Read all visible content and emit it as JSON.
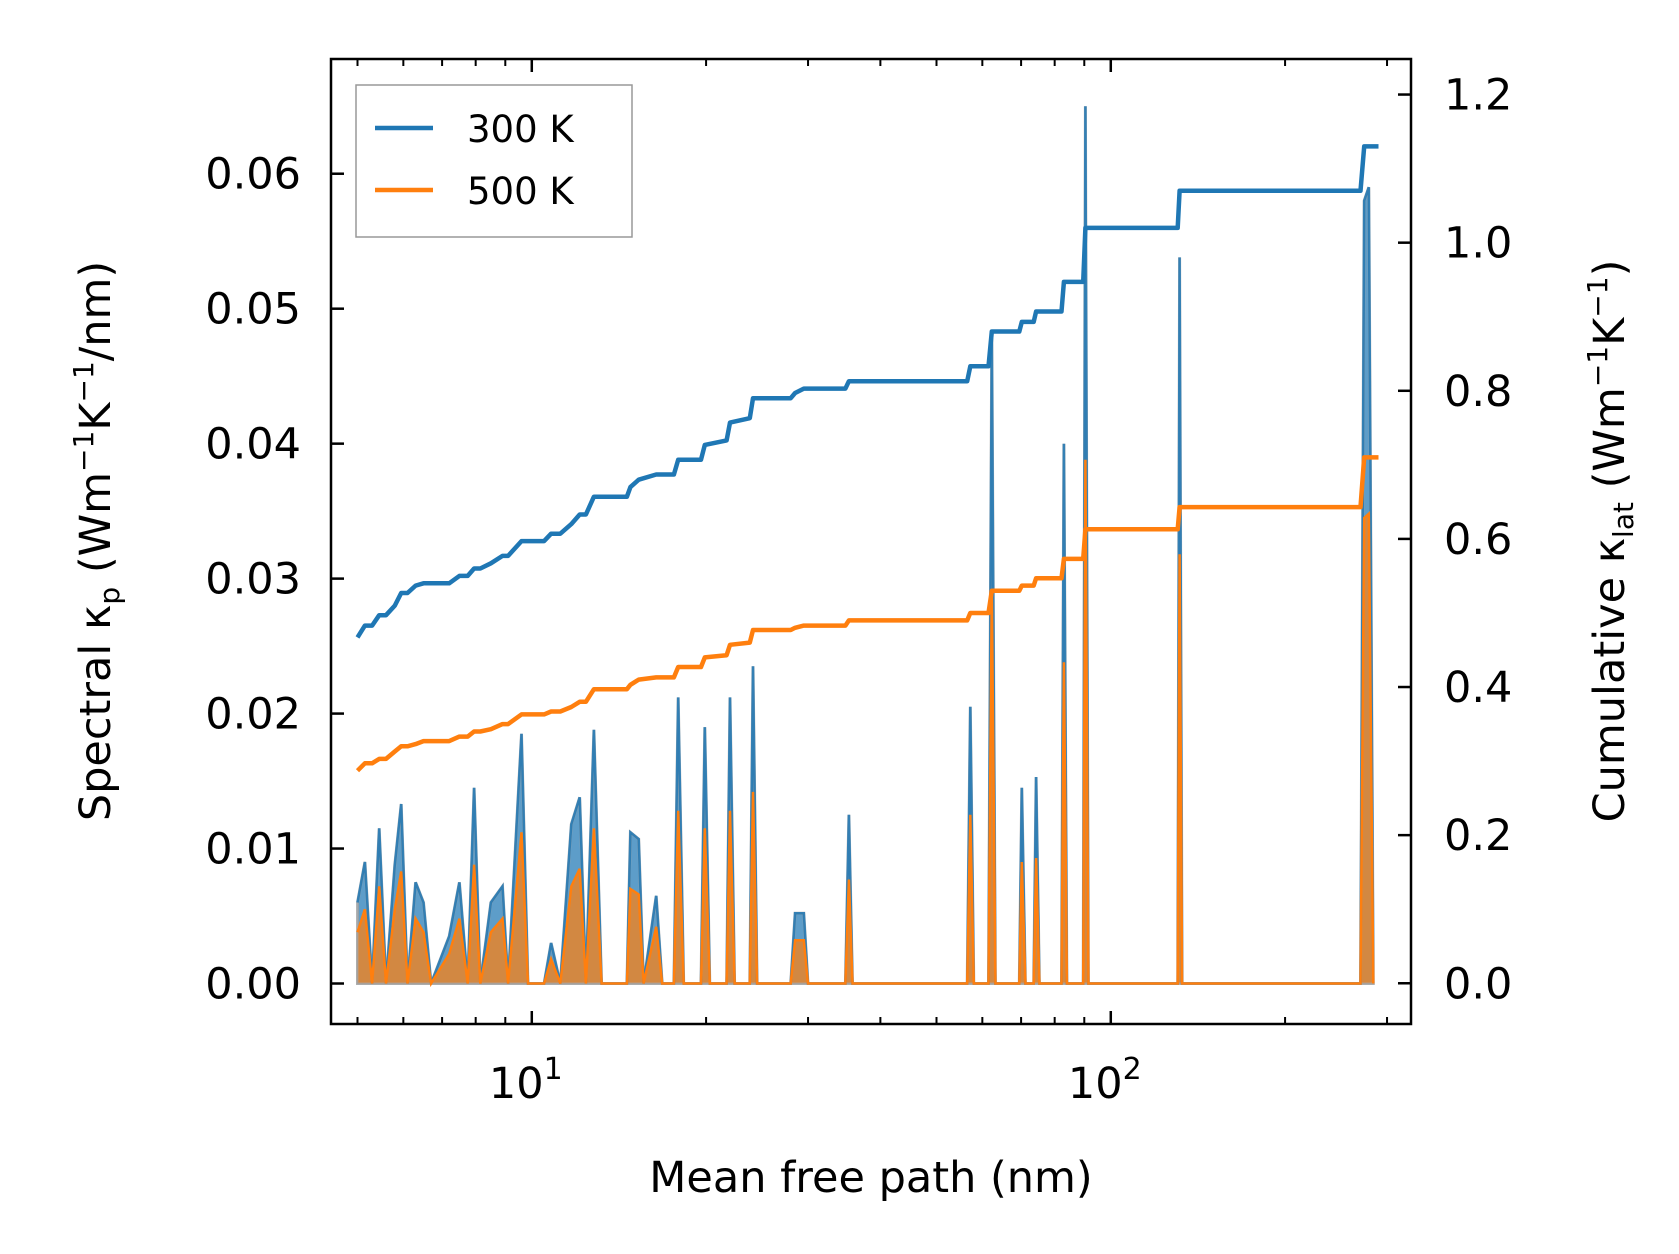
{
  "chart_data": {
    "type": "line",
    "title": "",
    "xlabel": "Mean free path (nm)",
    "ylabel_left": {
      "main": "Spectral κ",
      "sub": "p",
      "units_pre": " (Wm",
      "sup1": "−1",
      "k": "K",
      "sup2": "−1",
      "units_post": "/nm)"
    },
    "ylabel_right": {
      "main": "Cumulative κ",
      "sub": "lat",
      "units_pre": " (Wm",
      "sup1": "−1",
      "k": "K",
      "sup2": "−1",
      "units_post": ")"
    },
    "xscale": "log",
    "xlim": [
      4.5,
      330
    ],
    "ylim_left": [
      -0.003,
      0.0685
    ],
    "ylim_right": [
      -0.055,
      1.248
    ],
    "xticks": [
      {
        "value": 10,
        "base": "10",
        "exp": "1"
      },
      {
        "value": 100,
        "base": "10",
        "exp": "2"
      }
    ],
    "yticks_left": [
      {
        "value": 0.0,
        "label": "0.00"
      },
      {
        "value": 0.01,
        "label": "0.01"
      },
      {
        "value": 0.02,
        "label": "0.02"
      },
      {
        "value": 0.03,
        "label": "0.03"
      },
      {
        "value": 0.04,
        "label": "0.04"
      },
      {
        "value": 0.05,
        "label": "0.05"
      },
      {
        "value": 0.06,
        "label": "0.06"
      }
    ],
    "yticks_right": [
      {
        "value": 0.0,
        "label": "0.0"
      },
      {
        "value": 0.2,
        "label": "0.2"
      },
      {
        "value": 0.4,
        "label": "0.4"
      },
      {
        "value": 0.6,
        "label": "0.6"
      },
      {
        "value": 0.8,
        "label": "0.8"
      },
      {
        "value": 1.0,
        "label": "1.0"
      },
      {
        "value": 1.2,
        "label": "1.2"
      }
    ],
    "legend": {
      "location": "upper-left",
      "entries": [
        "300 K",
        "500 K"
      ]
    },
    "colors": {
      "s300": "#1f77b4",
      "s500": "#ff7f0e",
      "fill300": "#1f77b4",
      "fill500": "#ff7f0e",
      "fillEdge": "#a0a0a0"
    },
    "spectral": {
      "s300": [
        [
          5.0,
          0.006
        ],
        [
          5.15,
          0.009
        ],
        [
          5.3,
          0.0
        ],
        [
          5.45,
          0.0115
        ],
        [
          5.6,
          0.0
        ],
        [
          5.8,
          0.0088
        ],
        [
          5.95,
          0.0133
        ],
        [
          6.1,
          0.0
        ],
        [
          6.3,
          0.0075
        ],
        [
          6.5,
          0.006
        ],
        [
          6.7,
          0.0
        ],
        [
          7.2,
          0.0035
        ],
        [
          7.5,
          0.0075
        ],
        [
          7.75,
          0.0
        ],
        [
          7.95,
          0.0145
        ],
        [
          8.15,
          0.0
        ],
        [
          8.5,
          0.006
        ],
        [
          8.9,
          0.0072
        ],
        [
          9.1,
          0.0
        ],
        [
          9.6,
          0.0185
        ],
        [
          9.85,
          0.0
        ],
        [
          10.5,
          0.0
        ],
        [
          10.8,
          0.003
        ],
        [
          11.2,
          0.0
        ],
        [
          11.7,
          0.0118
        ],
        [
          12.1,
          0.0138
        ],
        [
          12.4,
          0.0
        ],
        [
          12.8,
          0.0188
        ],
        [
          13.2,
          0.0
        ],
        [
          14.6,
          0.0
        ],
        [
          14.8,
          0.0112
        ],
        [
          15.3,
          0.0107
        ],
        [
          15.6,
          0.0
        ],
        [
          16.4,
          0.0065
        ],
        [
          16.8,
          0.0
        ],
        [
          17.6,
          0.0
        ],
        [
          17.9,
          0.0212
        ],
        [
          18.3,
          0.0
        ],
        [
          19.6,
          0.0
        ],
        [
          19.9,
          0.019
        ],
        [
          20.3,
          0.0
        ],
        [
          21.7,
          0.0
        ],
        [
          22.0,
          0.0212
        ],
        [
          22.4,
          0.0
        ],
        [
          23.8,
          0.0
        ],
        [
          24.1,
          0.0235
        ],
        [
          24.5,
          0.0
        ],
        [
          28.0,
          0.0
        ],
        [
          28.5,
          0.0052
        ],
        [
          29.5,
          0.0052
        ],
        [
          30.0,
          0.0
        ],
        [
          34.8,
          0.0
        ],
        [
          35.3,
          0.0125
        ],
        [
          35.8,
          0.0
        ],
        [
          56.5,
          0.0
        ],
        [
          57.2,
          0.0205
        ],
        [
          58.0,
          0.0
        ],
        [
          61.5,
          0.0
        ],
        [
          62.3,
          0.048
        ],
        [
          63.2,
          0.0
        ],
        [
          69.5,
          0.0
        ],
        [
          70.2,
          0.0145
        ],
        [
          71.2,
          0.0
        ],
        [
          73.6,
          0.0
        ],
        [
          74.3,
          0.0153
        ],
        [
          75.3,
          0.0
        ],
        [
          82.2,
          0.0
        ],
        [
          83.0,
          0.04
        ],
        [
          84.0,
          0.0
        ],
        [
          89.6,
          0.0
        ],
        [
          90.4,
          0.065
        ],
        [
          91.5,
          0.0
        ],
        [
          130.5,
          0.0
        ],
        [
          131.5,
          0.0538
        ],
        [
          132.8,
          0.0
        ],
        [
          270.0,
          0.0
        ],
        [
          274.0,
          0.058
        ],
        [
          279.0,
          0.059
        ],
        [
          284.0,
          0.0
        ]
      ],
      "s500": [
        [
          5.0,
          0.0038
        ],
        [
          5.15,
          0.0055
        ],
        [
          5.3,
          0.0
        ],
        [
          5.45,
          0.0072
        ],
        [
          5.6,
          0.0
        ],
        [
          5.8,
          0.0055
        ],
        [
          5.95,
          0.0083
        ],
        [
          6.1,
          0.0
        ],
        [
          6.3,
          0.0048
        ],
        [
          6.5,
          0.0038
        ],
        [
          6.7,
          0.0
        ],
        [
          7.2,
          0.0022
        ],
        [
          7.5,
          0.0048
        ],
        [
          7.75,
          0.0
        ],
        [
          7.95,
          0.0088
        ],
        [
          8.15,
          0.0
        ],
        [
          8.5,
          0.0038
        ],
        [
          8.9,
          0.0048
        ],
        [
          9.1,
          0.0
        ],
        [
          9.6,
          0.0112
        ],
        [
          9.85,
          0.0
        ],
        [
          10.5,
          0.0
        ],
        [
          10.8,
          0.0018
        ],
        [
          11.2,
          0.0
        ],
        [
          11.7,
          0.0072
        ],
        [
          12.1,
          0.0085
        ],
        [
          12.4,
          0.0
        ],
        [
          12.8,
          0.0115
        ],
        [
          13.2,
          0.0
        ],
        [
          14.6,
          0.0
        ],
        [
          14.8,
          0.007
        ],
        [
          15.3,
          0.0066
        ],
        [
          15.6,
          0.0
        ],
        [
          16.4,
          0.0042
        ],
        [
          16.8,
          0.0
        ],
        [
          17.6,
          0.0
        ],
        [
          17.9,
          0.0128
        ],
        [
          18.3,
          0.0
        ],
        [
          19.6,
          0.0
        ],
        [
          19.9,
          0.0115
        ],
        [
          20.3,
          0.0
        ],
        [
          21.7,
          0.0
        ],
        [
          22.0,
          0.0128
        ],
        [
          22.4,
          0.0
        ],
        [
          23.8,
          0.0
        ],
        [
          24.1,
          0.0142
        ],
        [
          24.5,
          0.0
        ],
        [
          28.0,
          0.0
        ],
        [
          28.5,
          0.0032
        ],
        [
          29.5,
          0.0032
        ],
        [
          30.0,
          0.0
        ],
        [
          34.8,
          0.0
        ],
        [
          35.3,
          0.0077
        ],
        [
          35.8,
          0.0
        ],
        [
          56.5,
          0.0
        ],
        [
          57.2,
          0.0125
        ],
        [
          58.0,
          0.0
        ],
        [
          61.5,
          0.0
        ],
        [
          62.3,
          0.0292
        ],
        [
          63.2,
          0.0
        ],
        [
          69.5,
          0.0
        ],
        [
          70.2,
          0.009
        ],
        [
          71.2,
          0.0
        ],
        [
          73.6,
          0.0
        ],
        [
          74.3,
          0.0093
        ],
        [
          75.3,
          0.0
        ],
        [
          82.2,
          0.0
        ],
        [
          83.0,
          0.0238
        ],
        [
          84.0,
          0.0
        ],
        [
          89.6,
          0.0
        ],
        [
          90.4,
          0.0388
        ],
        [
          91.5,
          0.0
        ],
        [
          130.5,
          0.0
        ],
        [
          131.5,
          0.0318
        ],
        [
          132.8,
          0.0
        ],
        [
          270.0,
          0.0
        ],
        [
          274.0,
          0.0345
        ],
        [
          279.0,
          0.0348
        ],
        [
          284.0,
          0.0
        ]
      ]
    },
    "cumulative": {
      "s300": [
        [
          5.0,
          0.467
        ],
        [
          5.15,
          0.483
        ],
        [
          5.3,
          0.483
        ],
        [
          5.45,
          0.497
        ],
        [
          5.6,
          0.497
        ],
        [
          5.8,
          0.51
        ],
        [
          5.95,
          0.527
        ],
        [
          6.1,
          0.527
        ],
        [
          6.3,
          0.537
        ],
        [
          6.5,
          0.54
        ],
        [
          7.2,
          0.54
        ],
        [
          7.5,
          0.55
        ],
        [
          7.75,
          0.55
        ],
        [
          7.95,
          0.56
        ],
        [
          8.15,
          0.56
        ],
        [
          8.5,
          0.567
        ],
        [
          8.9,
          0.577
        ],
        [
          9.1,
          0.577
        ],
        [
          9.6,
          0.597
        ],
        [
          10.5,
          0.597
        ],
        [
          10.8,
          0.607
        ],
        [
          11.2,
          0.607
        ],
        [
          11.7,
          0.62
        ],
        [
          12.1,
          0.633
        ],
        [
          12.4,
          0.633
        ],
        [
          12.8,
          0.657
        ],
        [
          14.6,
          0.657
        ],
        [
          14.8,
          0.67
        ],
        [
          15.3,
          0.68
        ],
        [
          16.4,
          0.687
        ],
        [
          17.6,
          0.687
        ],
        [
          17.9,
          0.707
        ],
        [
          19.6,
          0.707
        ],
        [
          19.9,
          0.727
        ],
        [
          21.7,
          0.733
        ],
        [
          22.0,
          0.757
        ],
        [
          23.8,
          0.763
        ],
        [
          24.1,
          0.79
        ],
        [
          28.0,
          0.79
        ],
        [
          28.5,
          0.797
        ],
        [
          29.5,
          0.803
        ],
        [
          34.8,
          0.803
        ],
        [
          35.3,
          0.813
        ],
        [
          56.5,
          0.813
        ],
        [
          57.2,
          0.833
        ],
        [
          61.5,
          0.833
        ],
        [
          62.3,
          0.88
        ],
        [
          69.5,
          0.88
        ],
        [
          70.2,
          0.893
        ],
        [
          73.6,
          0.893
        ],
        [
          74.3,
          0.907
        ],
        [
          82.2,
          0.907
        ],
        [
          83.0,
          0.947
        ],
        [
          89.6,
          0.947
        ],
        [
          90.4,
          1.02
        ],
        [
          130.5,
          1.02
        ],
        [
          131.5,
          1.07
        ],
        [
          270.0,
          1.07
        ],
        [
          274.0,
          1.13
        ],
        [
          290.0,
          1.13
        ]
      ],
      "s500": [
        [
          5.0,
          0.287
        ],
        [
          5.15,
          0.297
        ],
        [
          5.3,
          0.297
        ],
        [
          5.45,
          0.303
        ],
        [
          5.6,
          0.303
        ],
        [
          5.8,
          0.313
        ],
        [
          5.95,
          0.32
        ],
        [
          6.1,
          0.32
        ],
        [
          6.3,
          0.323
        ],
        [
          6.5,
          0.327
        ],
        [
          7.2,
          0.327
        ],
        [
          7.5,
          0.333
        ],
        [
          7.75,
          0.333
        ],
        [
          7.95,
          0.34
        ],
        [
          8.15,
          0.34
        ],
        [
          8.5,
          0.343
        ],
        [
          8.9,
          0.35
        ],
        [
          9.1,
          0.35
        ],
        [
          9.6,
          0.363
        ],
        [
          10.5,
          0.363
        ],
        [
          10.8,
          0.367
        ],
        [
          11.2,
          0.367
        ],
        [
          11.7,
          0.373
        ],
        [
          12.1,
          0.38
        ],
        [
          12.4,
          0.38
        ],
        [
          12.8,
          0.397
        ],
        [
          14.6,
          0.397
        ],
        [
          14.8,
          0.403
        ],
        [
          15.3,
          0.41
        ],
        [
          16.4,
          0.413
        ],
        [
          17.6,
          0.413
        ],
        [
          17.9,
          0.427
        ],
        [
          19.6,
          0.427
        ],
        [
          19.9,
          0.44
        ],
        [
          21.7,
          0.443
        ],
        [
          22.0,
          0.457
        ],
        [
          23.8,
          0.46
        ],
        [
          24.1,
          0.477
        ],
        [
          28.0,
          0.477
        ],
        [
          28.5,
          0.48
        ],
        [
          29.5,
          0.483
        ],
        [
          34.8,
          0.483
        ],
        [
          35.3,
          0.49
        ],
        [
          56.5,
          0.49
        ],
        [
          57.2,
          0.5
        ],
        [
          61.5,
          0.5
        ],
        [
          62.3,
          0.53
        ],
        [
          69.5,
          0.53
        ],
        [
          70.2,
          0.537
        ],
        [
          73.6,
          0.537
        ],
        [
          74.3,
          0.547
        ],
        [
          82.2,
          0.547
        ],
        [
          83.0,
          0.573
        ],
        [
          89.6,
          0.573
        ],
        [
          90.4,
          0.613
        ],
        [
          130.5,
          0.613
        ],
        [
          131.5,
          0.643
        ],
        [
          270.0,
          0.643
        ],
        [
          274.0,
          0.71
        ],
        [
          290.0,
          0.71
        ]
      ]
    }
  }
}
